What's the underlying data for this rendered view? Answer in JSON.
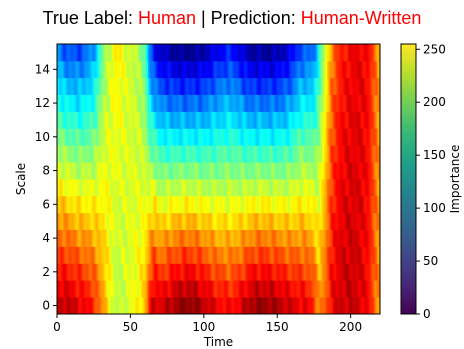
{
  "chart_data": [
    {
      "type": "heatmap",
      "title": {
        "prefix": "True Label: ",
        "true_label": "Human",
        "separator": " | Prediction: ",
        "prediction": "Human-Written"
      },
      "title_color_highlight": "#ff0000",
      "xlabel": "Time",
      "ylabel": "Scale",
      "xlim": [
        0,
        220
      ],
      "ylim": [
        -0.5,
        15.5
      ],
      "x_ticks": [
        0,
        50,
        100,
        150,
        200
      ],
      "y_ticks": [
        0,
        2,
        4,
        6,
        8,
        10,
        12,
        14
      ],
      "colormap": "jet",
      "color_range": [
        0,
        255
      ],
      "grid": false,
      "colorbar": {
        "label": "Importance",
        "colormap": "viridis",
        "range": [
          0,
          255
        ],
        "ticks": [
          0,
          50,
          100,
          150,
          200,
          250
        ]
      },
      "rows": 16,
      "cols": 220,
      "profile_x": [
        0,
        5,
        15,
        25,
        32,
        40,
        48,
        55,
        60,
        63,
        66,
        70,
        80,
        88,
        95,
        100,
        110,
        118,
        125,
        132,
        140,
        148,
        155,
        160,
        165,
        170,
        175,
        178,
        183,
        187,
        193,
        200,
        207,
        212,
        216,
        220
      ],
      "profile_low": [
        235,
        240,
        230,
        215,
        180,
        140,
        150,
        160,
        175,
        215,
        240,
        230,
        245,
        252,
        248,
        240,
        225,
        220,
        230,
        245,
        250,
        245,
        238,
        232,
        228,
        225,
        215,
        185,
        200,
        225,
        235,
        238,
        232,
        222,
        200,
        185
      ],
      "profile_high": [
        70,
        55,
        50,
        70,
        130,
        165,
        150,
        140,
        120,
        60,
        35,
        20,
        8,
        5,
        7,
        12,
        30,
        40,
        25,
        10,
        8,
        10,
        18,
        30,
        50,
        55,
        60,
        95,
        150,
        190,
        215,
        225,
        228,
        222,
        200,
        180
      ]
    }
  ]
}
